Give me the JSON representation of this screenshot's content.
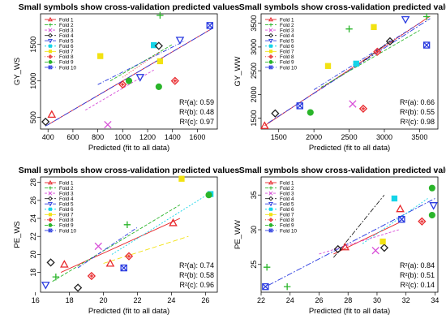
{
  "legend_entries": [
    "Fold 1",
    "Fold 2",
    "Fold 3",
    "Fold 4",
    "Fold 5",
    "Fold 6",
    "Fold 7",
    "Fold 8",
    "Fold 9",
    "Fold 10"
  ],
  "fold_colors": [
    "#e8282c",
    "#2ab52a",
    "#d84fd8",
    "#222222",
    "#2a3be0",
    "#14d4e8",
    "#f2e212",
    "#e8282c",
    "#2ab52a",
    "#2a3be0"
  ],
  "chart_data": [
    {
      "type": "scatter",
      "title": "Small symbols show cross-validation predicted values",
      "xlabel": "Predicted (fit to all data)",
      "ylabel": "GY_WS",
      "xlim": [
        340,
        1760
      ],
      "ylim": [
        340,
        1920
      ],
      "xticks": [
        400,
        600,
        800,
        1000,
        1200,
        1400,
        1600
      ],
      "yticks": [
        500,
        1000,
        1500
      ],
      "legend_position": "top-left",
      "stats": [
        "R²(a): 0.59",
        "R²(b): 0.48",
        "R²(c): 0.97"
      ],
      "points": [
        [
          430,
          540,
          0
        ],
        [
          1300,
          1900,
          1
        ],
        [
          880,
          400,
          2
        ],
        [
          380,
          440,
          3
        ],
        [
          1460,
          1560,
          4
        ],
        [
          1250,
          1490,
          5
        ],
        [
          820,
          1340,
          6
        ],
        [
          1420,
          1000,
          7
        ],
        [
          1290,
          920,
          8
        ],
        [
          1700,
          1760,
          9
        ],
        [
          1140,
          1050,
          4
        ],
        [
          1290,
          1480,
          3
        ],
        [
          1050,
          1000,
          8
        ],
        [
          1000,
          950,
          7
        ],
        [
          1300,
          1270,
          6
        ]
      ],
      "lines": [
        [
          [
            400,
            400
          ],
          [
            1720,
            1720
          ],
          0
        ],
        [
          [
            380,
            380
          ],
          [
            1720,
            1720
          ],
          9
        ],
        [
          [
            900,
            1000
          ],
          [
            1400,
            1500
          ],
          1
        ],
        [
          [
            800,
            950
          ],
          [
            1500,
            1550
          ],
          4
        ],
        [
          [
            1000,
            1050
          ],
          [
            1300,
            1400
          ],
          7
        ],
        [
          [
            700,
            600
          ],
          [
            1250,
            1150
          ],
          2
        ]
      ]
    },
    {
      "type": "scatter",
      "title": "Small symbols show cross-validation predicted values",
      "xlabel": "Predicted (fit to all data)",
      "ylabel": "GY_WW",
      "xlim": [
        1250,
        3760
      ],
      "ylim": [
        1270,
        3700
      ],
      "xticks": [
        1500,
        2000,
        2500,
        3000,
        3500
      ],
      "yticks": [
        1500,
        2000,
        2500,
        3000,
        3500
      ],
      "legend_position": "top-left",
      "stats": [
        "R²(a): 0.66",
        "R²(b): 0.55",
        "R²(c): 0.98"
      ],
      "points": [
        [
          1300,
          1340,
          0
        ],
        [
          3600,
          3640,
          1
        ],
        [
          2550,
          1800,
          2
        ],
        [
          1450,
          1600,
          3
        ],
        [
          3300,
          3580,
          4
        ],
        [
          2600,
          2650,
          5
        ],
        [
          2850,
          3420,
          6
        ],
        [
          2700,
          1700,
          7
        ],
        [
          1950,
          1620,
          8
        ],
        [
          3600,
          3040,
          9
        ],
        [
          3080,
          3120,
          3
        ],
        [
          2200,
          2600,
          6
        ],
        [
          2900,
          2900,
          7
        ],
        [
          2500,
          3380,
          1
        ],
        [
          1800,
          1760,
          9
        ]
      ],
      "lines": [
        [
          [
            1300,
            1340
          ],
          [
            3650,
            3650
          ],
          0
        ],
        [
          [
            1350,
            1400
          ],
          [
            3650,
            3600
          ],
          9
        ],
        [
          [
            2100,
            2150
          ],
          [
            3500,
            3350
          ],
          1
        ],
        [
          [
            2000,
            2100
          ],
          [
            3500,
            3500
          ],
          4
        ],
        [
          [
            2700,
            2700
          ],
          [
            3100,
            3150
          ],
          3
        ]
      ]
    },
    {
      "type": "scatter",
      "title": "Small symbols show cross-validation predicted values",
      "xlabel": "Predicted (fit to all data)",
      "ylabel": "PE_WS",
      "xlim": [
        16.3,
        26.7
      ],
      "ylim": [
        15.8,
        28.6
      ],
      "xticks": [
        16,
        18,
        20,
        22,
        24,
        26
      ],
      "yticks": [
        18,
        20,
        22,
        24,
        26,
        28
      ],
      "legend_position": "top-left",
      "stats": [
        "R²(a): 0.74",
        "R²(b): 0.58",
        "R²(c): 0.96"
      ],
      "points": [
        [
          17.7,
          18.9,
          0
        ],
        [
          17.2,
          17.5,
          1
        ],
        [
          19.7,
          20.9,
          2
        ],
        [
          16.9,
          19.1,
          3
        ],
        [
          16.6,
          16.6,
          4
        ],
        [
          26.3,
          26.7,
          5
        ],
        [
          24.6,
          28.4,
          6
        ],
        [
          21.5,
          19.8,
          7
        ],
        [
          26.2,
          26.6,
          8
        ],
        [
          21.2,
          18.5,
          9
        ],
        [
          18.5,
          16.3,
          3
        ],
        [
          19.3,
          17.6,
          7
        ],
        [
          20.4,
          19.0,
          0
        ],
        [
          21.4,
          23.3,
          1
        ],
        [
          24.1,
          23.5,
          0
        ]
      ],
      "lines": [
        [
          [
            17.5,
            18.0
          ],
          [
            24.5,
            24.0
          ],
          0
        ],
        [
          [
            17.0,
            17.0
          ],
          [
            24.5,
            25.5
          ],
          1
        ],
        [
          [
            20.0,
            19.0
          ],
          [
            25.0,
            22.0
          ],
          6
        ],
        [
          [
            20.5,
            20.0
          ],
          [
            26.0,
            26.5
          ],
          5
        ],
        [
          [
            18.5,
            18.5
          ],
          [
            22.0,
            23.0
          ],
          4
        ]
      ]
    },
    {
      "type": "scatter",
      "title": "Small symbols show cross-validation predicted values",
      "xlabel": "Predicted (fit to all data)",
      "ylabel": "PE_WW",
      "xlim": [
        22.0,
        34.2
      ],
      "ylim": [
        21.0,
        37.6
      ],
      "xticks": [
        22,
        24,
        26,
        28,
        30,
        32,
        34
      ],
      "yticks": [
        25,
        30,
        35
      ],
      "legend_position": "top-left",
      "stats": [
        "R²(a): 0.84",
        "R²(b): 0.51",
        "R²(c): 0.14"
      ],
      "points": [
        [
          22.4,
          24.6,
          1
        ],
        [
          23.8,
          21.8,
          1
        ],
        [
          27.8,
          27.5,
          0
        ],
        [
          30.5,
          27.4,
          3
        ],
        [
          33.9,
          33.5,
          4
        ],
        [
          31.2,
          34.5,
          5
        ],
        [
          30.4,
          28.3,
          6
        ],
        [
          33.1,
          31.2,
          7
        ],
        [
          33.8,
          36.0,
          8
        ],
        [
          22.3,
          21.8,
          9
        ],
        [
          27.3,
          27.2,
          3
        ],
        [
          29.9,
          27.0,
          2
        ],
        [
          31.6,
          33.0,
          0
        ],
        [
          31.7,
          31.5,
          9
        ],
        [
          33.8,
          32.1,
          8
        ]
      ],
      "lines": [
        [
          [
            22.5,
            22.0
          ],
          [
            34.0,
            34.5
          ],
          9
        ],
        [
          [
            27.0,
            26.5
          ],
          [
            31.5,
            31.0
          ],
          0
        ],
        [
          [
            27.0,
            26.0
          ],
          [
            30.5,
            35.0
          ],
          3
        ],
        [
          [
            26.0,
            26.5
          ],
          [
            31.5,
            30.0
          ],
          2
        ],
        [
          [
            29.0,
            28.0
          ],
          [
            33.5,
            34.5
          ],
          5
        ]
      ]
    }
  ]
}
